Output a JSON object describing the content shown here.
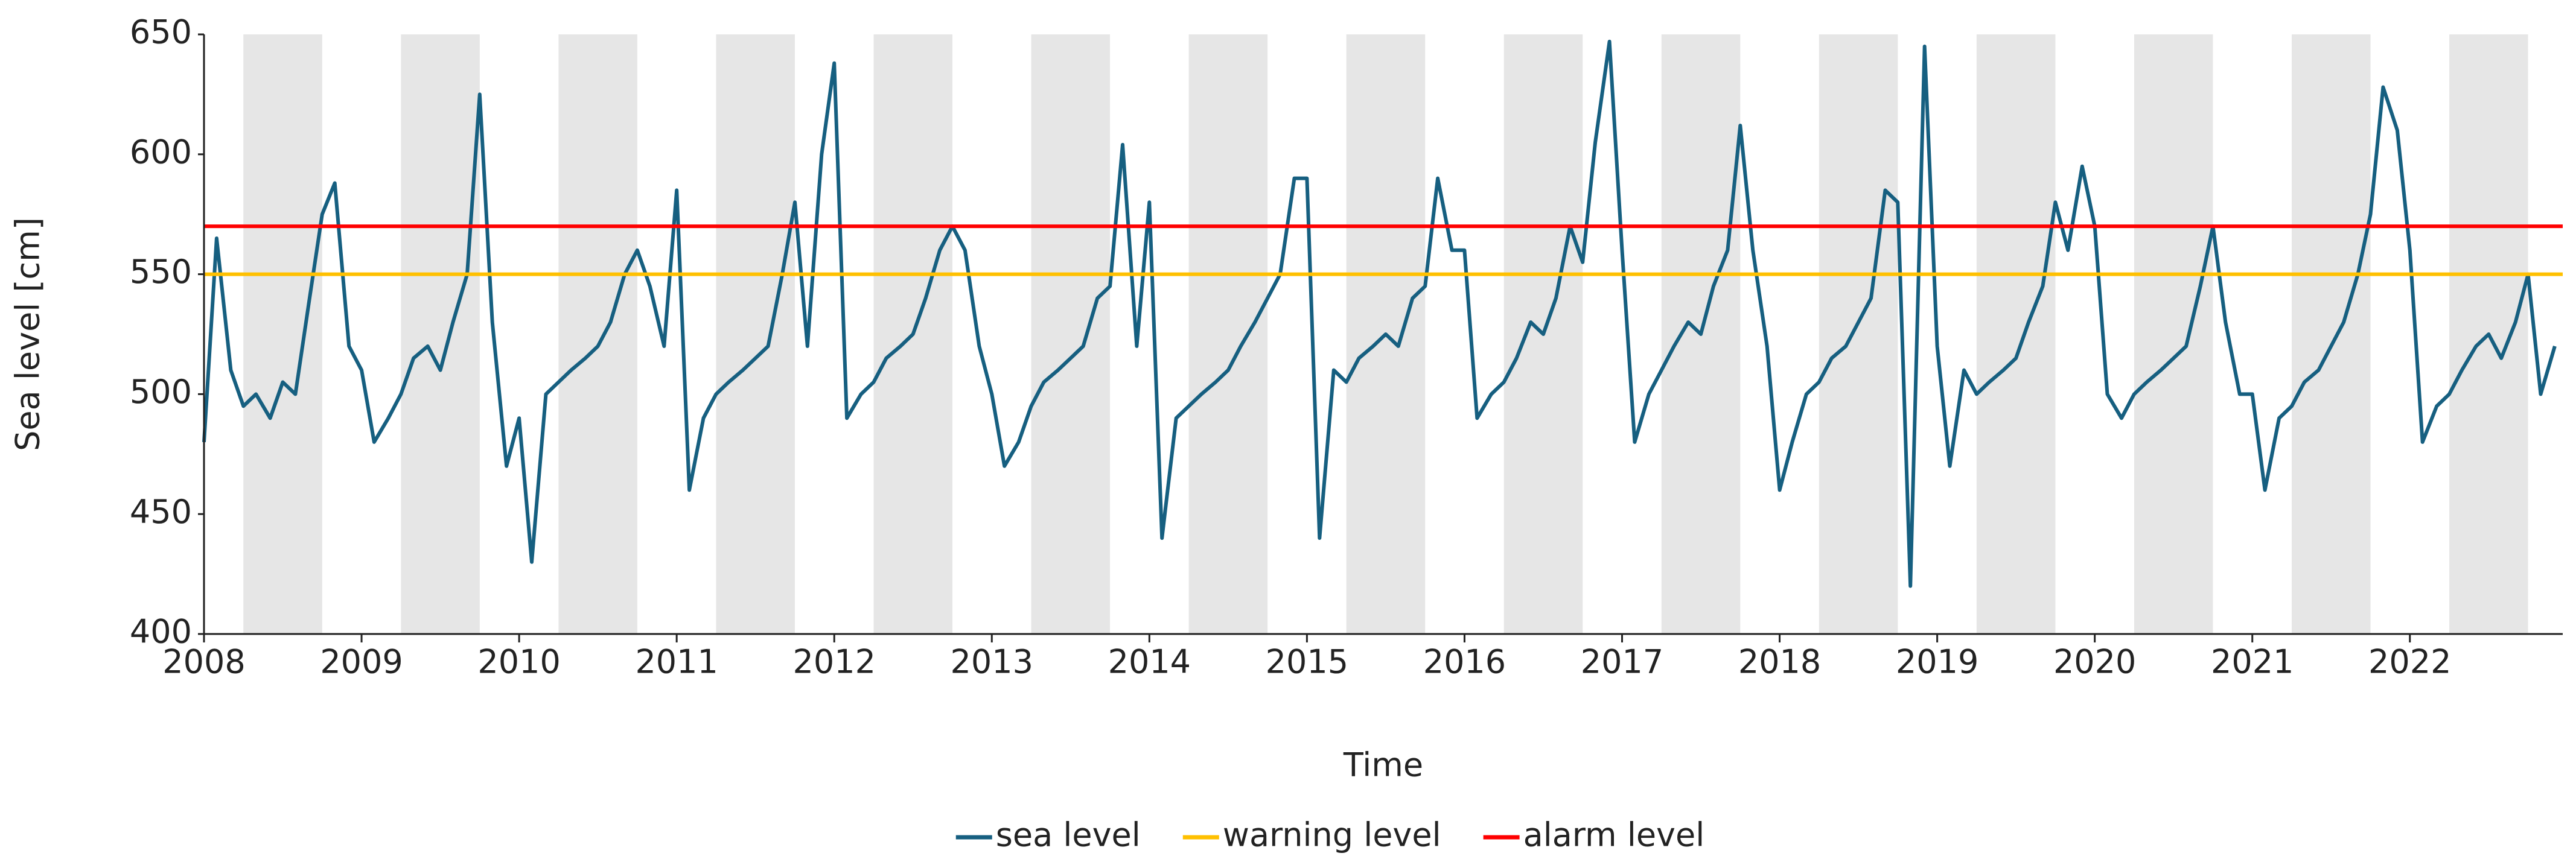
{
  "chart_data": {
    "type": "line",
    "x_label": "Time",
    "y_label": "Sea level [cm]",
    "xlim": [
      2008,
      2022.97
    ],
    "xticks": [
      2008,
      2009,
      2010,
      2011,
      2012,
      2013,
      2014,
      2015,
      2016,
      2017,
      2018,
      2019,
      2020,
      2021,
      2022
    ],
    "ylim": [
      400,
      650
    ],
    "yticks": [
      400,
      450,
      500,
      550,
      600,
      650
    ],
    "x": [
      2008.0,
      2008.08,
      2008.17,
      2008.25,
      2008.33,
      2008.42,
      2008.5,
      2008.58,
      2008.67,
      2008.75,
      2008.83,
      2008.92,
      2009.0,
      2009.08,
      2009.17,
      2009.25,
      2009.33,
      2009.42,
      2009.5,
      2009.58,
      2009.67,
      2009.75,
      2009.83,
      2009.92,
      2010.0,
      2010.08,
      2010.17,
      2010.25,
      2010.33,
      2010.42,
      2010.5,
      2010.58,
      2010.67,
      2010.75,
      2010.83,
      2010.92,
      2011.0,
      2011.08,
      2011.17,
      2011.25,
      2011.33,
      2011.42,
      2011.5,
      2011.58,
      2011.67,
      2011.75,
      2011.83,
      2011.92,
      2012.0,
      2012.08,
      2012.17,
      2012.25,
      2012.33,
      2012.42,
      2012.5,
      2012.58,
      2012.67,
      2012.75,
      2012.83,
      2012.92,
      2013.0,
      2013.08,
      2013.17,
      2013.25,
      2013.33,
      2013.42,
      2013.5,
      2013.58,
      2013.67,
      2013.75,
      2013.83,
      2013.92,
      2014.0,
      2014.08,
      2014.17,
      2014.25,
      2014.33,
      2014.42,
      2014.5,
      2014.58,
      2014.67,
      2014.75,
      2014.83,
      2014.92,
      2015.0,
      2015.08,
      2015.17,
      2015.25,
      2015.33,
      2015.42,
      2015.5,
      2015.58,
      2015.67,
      2015.75,
      2015.83,
      2015.92,
      2016.0,
      2016.08,
      2016.17,
      2016.25,
      2016.33,
      2016.42,
      2016.5,
      2016.58,
      2016.67,
      2016.75,
      2016.83,
      2016.92,
      2017.0,
      2017.08,
      2017.17,
      2017.25,
      2017.33,
      2017.42,
      2017.5,
      2017.58,
      2017.67,
      2017.75,
      2017.83,
      2017.92,
      2018.0,
      2018.08,
      2018.17,
      2018.25,
      2018.33,
      2018.42,
      2018.5,
      2018.58,
      2018.67,
      2018.75,
      2018.83,
      2018.92,
      2019.0,
      2019.08,
      2019.17,
      2019.25,
      2019.33,
      2019.42,
      2019.5,
      2019.58,
      2019.67,
      2019.75,
      2019.83,
      2019.92,
      2020.0,
      2020.08,
      2020.17,
      2020.25,
      2020.33,
      2020.42,
      2020.5,
      2020.58,
      2020.67,
      2020.75,
      2020.83,
      2020.92,
      2021.0,
      2021.08,
      2021.17,
      2021.25,
      2021.33,
      2021.42,
      2021.5,
      2021.58,
      2021.67,
      2021.75,
      2021.83,
      2021.92,
      2022.0,
      2022.08,
      2022.17,
      2022.25,
      2022.33,
      2022.42,
      2022.5,
      2022.58,
      2022.67,
      2022.75,
      2022.83,
      2022.92
    ],
    "series": [
      {
        "name": "sea level",
        "color": "#165f80",
        "values": [
          480,
          565,
          510,
          495,
          500,
          490,
          505,
          500,
          540,
          575,
          588,
          520,
          510,
          480,
          490,
          500,
          515,
          520,
          510,
          530,
          550,
          625,
          530,
          470,
          490,
          430,
          500,
          505,
          510,
          515,
          520,
          530,
          550,
          560,
          545,
          520,
          585,
          460,
          490,
          500,
          505,
          510,
          515,
          520,
          550,
          580,
          520,
          600,
          638,
          490,
          500,
          505,
          515,
          520,
          525,
          540,
          560,
          570,
          560,
          520,
          500,
          470,
          480,
          495,
          505,
          510,
          515,
          520,
          540,
          545,
          604,
          520,
          580,
          440,
          490,
          495,
          500,
          505,
          510,
          520,
          530,
          540,
          550,
          590,
          590,
          440,
          510,
          505,
          515,
          520,
          525,
          520,
          540,
          545,
          590,
          560,
          560,
          490,
          500,
          505,
          515,
          530,
          525,
          540,
          570,
          555,
          605,
          647,
          560,
          480,
          500,
          510,
          520,
          530,
          525,
          545,
          560,
          612,
          560,
          520,
          460,
          480,
          500,
          505,
          515,
          520,
          530,
          540,
          585,
          580,
          420,
          645,
          520,
          470,
          510,
          500,
          505,
          510,
          515,
          530,
          545,
          580,
          560,
          595,
          570,
          500,
          490,
          500,
          505,
          510,
          515,
          520,
          545,
          570,
          530,
          500,
          500,
          460,
          490,
          495,
          505,
          510,
          520,
          530,
          550,
          575,
          628,
          610,
          560,
          480,
          495,
          500,
          510,
          520,
          525,
          515,
          530,
          550,
          500,
          520
        ]
      }
    ],
    "reference_lines": [
      {
        "name": "warning level",
        "color": "#ffc000",
        "value": 550
      },
      {
        "name": "alarm level",
        "color": "#ff0000",
        "value": 570
      }
    ]
  }
}
